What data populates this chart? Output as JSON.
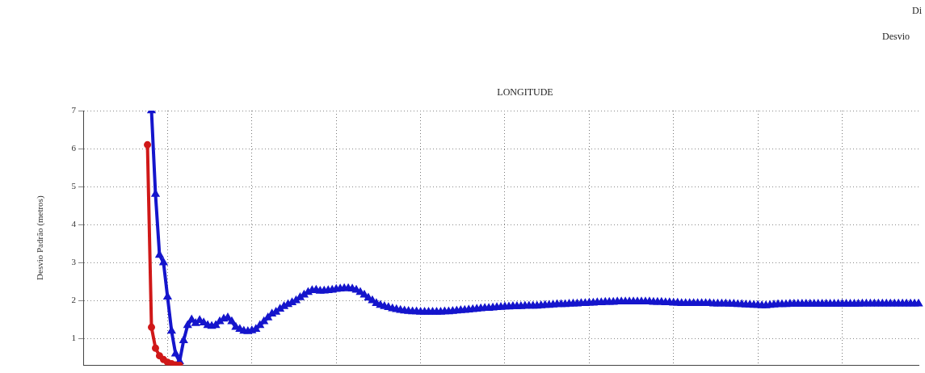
{
  "chart_data": {
    "type": "line",
    "title": "LONGITUDE",
    "ylabel": "Desvio Padrão (metros)",
    "annotations": [
      "Di",
      "Desvio"
    ],
    "categories": [
      null,
      null,
      null,
      null,
      null,
      null,
      null,
      null,
      null,
      null,
      null,
      null,
      null,
      null,
      null,
      null,
      null,
      null,
      null,
      null,
      null,
      null,
      null,
      null,
      null,
      null,
      null,
      null,
      null,
      null,
      null,
      null,
      null,
      null,
      null,
      null,
      null,
      null,
      null,
      null,
      null,
      null,
      null,
      null,
      null,
      null,
      null,
      null,
      null,
      null,
      null,
      null,
      null,
      null,
      null,
      null,
      null,
      null,
      null,
      null,
      null,
      null,
      null,
      null,
      null,
      null,
      null,
      null,
      null,
      null,
      null,
      null,
      null,
      null,
      null,
      null,
      null,
      null,
      null,
      null,
      null,
      null,
      null,
      null,
      null,
      null,
      null,
      null,
      null,
      null,
      null,
      null,
      null,
      null,
      null,
      null,
      null,
      null,
      null,
      null,
      null,
      null,
      null,
      null,
      null,
      null,
      null,
      null,
      null,
      null,
      null,
      null,
      null,
      null,
      null,
      null,
      null,
      null,
      null,
      null,
      null,
      null,
      null,
      null,
      null,
      null,
      null,
      null,
      null,
      null,
      null,
      null,
      null,
      null,
      null,
      null,
      null,
      null,
      null,
      null,
      null,
      null,
      null,
      null,
      null,
      null,
      null,
      null,
      null,
      null,
      null,
      null,
      null,
      null,
      null,
      null,
      null,
      null,
      null,
      null,
      null,
      null,
      null,
      null,
      null,
      null,
      null,
      null,
      null,
      null,
      null,
      null,
      null,
      null,
      null,
      null,
      null,
      null,
      null,
      null,
      null,
      null,
      null,
      null,
      null,
      null,
      null,
      null,
      null,
      null,
      null,
      null,
      null,
      null,
      null,
      null,
      null,
      null,
      null,
      null,
      null,
      null,
      null,
      null,
      null,
      null,
      null,
      null,
      null
    ],
    "series": [
      {
        "color": "#d01818",
        "marker": "circle",
        "values": [
          null,
          null,
          null,
          null,
          null,
          null,
          null,
          null,
          null,
          null,
          null,
          null,
          null,
          null,
          null,
          null,
          6.1,
          1.3,
          0.75,
          0.55,
          0.45,
          0.38,
          0.34,
          0.31,
          0.3,
          null,
          null,
          null,
          null,
          null,
          null,
          null,
          null,
          null,
          null,
          null,
          null,
          null,
          null,
          null,
          null,
          null,
          null,
          null,
          null,
          null,
          null,
          null,
          null,
          null,
          null,
          null,
          null,
          null,
          null,
          null,
          null,
          null,
          null,
          null,
          null,
          null,
          null,
          null,
          null,
          null,
          null,
          null,
          null,
          null,
          null,
          null,
          null,
          null,
          null,
          null,
          null,
          null,
          null,
          null,
          null,
          null,
          null,
          null,
          null,
          null,
          null,
          null,
          null,
          null,
          null,
          null,
          null,
          null,
          null,
          null,
          null,
          null,
          null,
          null,
          null,
          null,
          null,
          null,
          null,
          null,
          null,
          null,
          null,
          null,
          null,
          null,
          null,
          null,
          null,
          null,
          null,
          null,
          null,
          null,
          null,
          null,
          null,
          null,
          null,
          null,
          null,
          null,
          null,
          null,
          null,
          null,
          null,
          null,
          null,
          null,
          null,
          null,
          null,
          null,
          null,
          null,
          null,
          null,
          null,
          null,
          null,
          null,
          null,
          null,
          null,
          null,
          null,
          null,
          null,
          null,
          null,
          null,
          null,
          null,
          null,
          null,
          null,
          null,
          null,
          null,
          null,
          null,
          null,
          null,
          null,
          null,
          null,
          null,
          null,
          null,
          null,
          null,
          null,
          null,
          null,
          null,
          null,
          null,
          null,
          null,
          null,
          null,
          null,
          null,
          null,
          null,
          null,
          null,
          null,
          null,
          null,
          null,
          null,
          null,
          null,
          null,
          null,
          null,
          null,
          null,
          null,
          null,
          null
        ]
      },
      {
        "color": "#1515cc",
        "marker": "triangle",
        "values": [
          null,
          null,
          null,
          null,
          null,
          null,
          null,
          null,
          null,
          null,
          null,
          null,
          null,
          null,
          null,
          null,
          null,
          7.0,
          4.8,
          3.2,
          3.0,
          2.1,
          1.2,
          0.6,
          0.4,
          0.95,
          1.35,
          1.5,
          1.4,
          1.48,
          1.42,
          1.35,
          1.33,
          1.35,
          1.45,
          1.52,
          1.55,
          1.45,
          1.3,
          1.25,
          1.2,
          1.19,
          1.21,
          1.25,
          1.35,
          1.45,
          1.55,
          1.65,
          1.7,
          1.78,
          1.85,
          1.9,
          1.95,
          2.0,
          2.08,
          2.15,
          2.22,
          2.27,
          2.28,
          2.25,
          2.26,
          2.27,
          2.28,
          2.3,
          2.31,
          2.32,
          2.32,
          2.31,
          2.28,
          2.22,
          2.15,
          2.07,
          2.0,
          1.93,
          1.88,
          1.85,
          1.82,
          1.79,
          1.77,
          1.75,
          1.73,
          1.72,
          1.71,
          1.71,
          1.7,
          1.7,
          1.7,
          1.7,
          1.7,
          1.7,
          1.71,
          1.71,
          1.72,
          1.73,
          1.74,
          1.75,
          1.76,
          1.77,
          1.78,
          1.79,
          1.8,
          1.8,
          1.81,
          1.82,
          1.83,
          1.84,
          1.84,
          1.85,
          1.85,
          1.85,
          1.86,
          1.86,
          1.86,
          1.86,
          1.87,
          1.88,
          1.88,
          1.89,
          1.9,
          1.9,
          1.9,
          1.91,
          1.92,
          1.92,
          1.93,
          1.93,
          1.94,
          1.94,
          1.95,
          1.95,
          1.96,
          1.96,
          1.96,
          1.97,
          1.97,
          1.97,
          1.97,
          1.97,
          1.97,
          1.97,
          1.97,
          1.97,
          1.96,
          1.96,
          1.96,
          1.95,
          1.95,
          1.94,
          1.94,
          1.93,
          1.93,
          1.93,
          1.93,
          1.93,
          1.93,
          1.93,
          1.93,
          1.92,
          1.92,
          1.92,
          1.92,
          1.91,
          1.91,
          1.9,
          1.9,
          1.89,
          1.89,
          1.88,
          1.88,
          1.87,
          1.87,
          1.88,
          1.89,
          1.9,
          1.9,
          1.9,
          1.91,
          1.91,
          1.91,
          1.91,
          1.91,
          1.91,
          1.91,
          1.91,
          1.91,
          1.91,
          1.91,
          1.91,
          1.91,
          1.91,
          1.91,
          1.91,
          1.91,
          1.91,
          1.92,
          1.92,
          1.92,
          1.92,
          1.92,
          1.92,
          1.92,
          1.92,
          1.92,
          1.92,
          1.92,
          1.92,
          1.92,
          1.92,
          1.92
        ]
      }
    ],
    "ylim": [
      0.3,
      7
    ],
    "yticks": [
      1,
      2,
      3,
      4,
      5,
      6,
      7
    ],
    "grid": true,
    "legend": false,
    "tick_labels": "y",
    "line_style": "solid"
  }
}
